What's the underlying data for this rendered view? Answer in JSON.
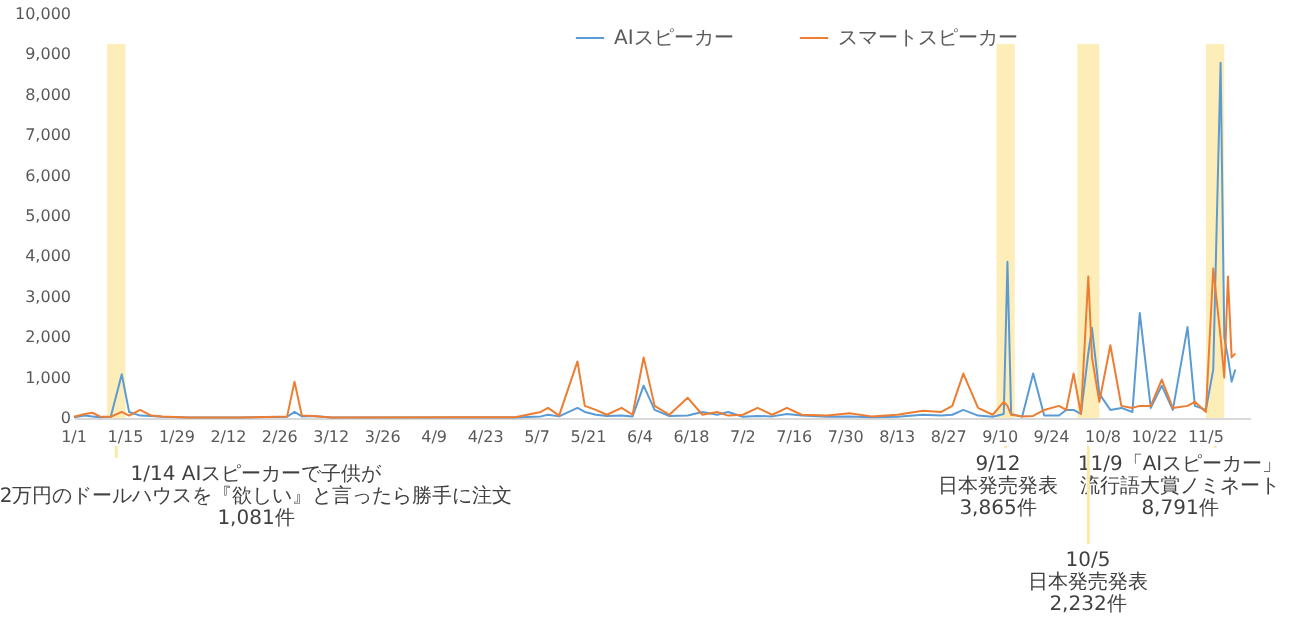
{
  "chart_data": {
    "type": "line",
    "x": [
      "--01-01",
      "--01-04",
      "--01-06",
      "--01-08",
      "--01-11",
      "--01-14",
      "--01-16",
      "--01-19",
      "--01-22",
      "--01-25",
      "--02-01",
      "--02-15",
      "--02-28",
      "--03-02",
      "--03-04",
      "--03-07",
      "--03-12",
      "--04-15",
      "--05-01",
      "--05-08",
      "--05-10",
      "--05-13",
      "--05-18",
      "--05-20",
      "--05-23",
      "--05-26",
      "--05-30",
      "--06-02",
      "--06-05",
      "--06-08",
      "--06-12",
      "--06-17",
      "--06-21",
      "--06-25",
      "--06-28",
      "--07-02",
      "--07-06",
      "--07-10",
      "--07-14",
      "--07-18",
      "--07-25",
      "--07-31",
      "--08-06",
      "--08-13",
      "--08-20",
      "--08-25",
      "--08-28",
      "--08-31",
      "--09-04",
      "--09-08",
      "--09-11",
      "--09-12",
      "--09-13",
      "--09-16",
      "--09-19",
      "--09-22",
      "--09-26",
      "--09-28",
      "--09-30",
      "--10-02",
      "--10-04",
      "--10-05",
      "--10-07",
      "--10-10",
      "--10-13",
      "--10-16",
      "--10-18",
      "--10-21",
      "--10-24",
      "--10-27",
      "--10-31",
      "--11-02",
      "--11-05",
      "--11-07",
      "--11-09",
      "--11-10",
      "--11-11",
      "--11-12",
      "--11-13"
    ],
    "series": [
      {
        "name": "AIスピーカー",
        "color": "#5b9bd5",
        "values": [
          20,
          60,
          40,
          20,
          30,
          1081,
          150,
          60,
          50,
          30,
          10,
          10,
          30,
          150,
          40,
          50,
          10,
          10,
          10,
          40,
          80,
          40,
          250,
          150,
          80,
          50,
          60,
          40,
          800,
          200,
          50,
          60,
          150,
          80,
          150,
          30,
          50,
          40,
          100,
          60,
          30,
          40,
          20,
          30,
          80,
          60,
          80,
          200,
          60,
          30,
          100,
          3865,
          100,
          30,
          1100,
          60,
          60,
          200,
          200,
          100,
          1600,
          2232,
          600,
          200,
          250,
          150,
          2600,
          250,
          800,
          200,
          2250,
          300,
          200,
          1200,
          8791,
          2000,
          1500,
          900,
          1200
        ]
      },
      {
        "name": "スマートスピーカー",
        "color": "#ed7d31",
        "values": [
          30,
          100,
          130,
          40,
          30,
          150,
          60,
          200,
          60,
          40,
          10,
          10,
          40,
          900,
          60,
          50,
          10,
          20,
          20,
          150,
          250,
          60,
          1400,
          300,
          200,
          80,
          250,
          80,
          1500,
          300,
          80,
          500,
          80,
          150,
          60,
          80,
          250,
          80,
          250,
          80,
          60,
          120,
          40,
          80,
          180,
          150,
          300,
          1100,
          250,
          80,
          400,
          300,
          80,
          40,
          50,
          200,
          300,
          200,
          1100,
          100,
          3500,
          1500,
          400,
          1800,
          300,
          250,
          300,
          300,
          950,
          250,
          300,
          400,
          150,
          3700,
          2000,
          1000,
          3500,
          1500,
          1600
        ]
      }
    ],
    "xlim": [
      "--01-01",
      "--11-17"
    ],
    "xticks": [
      {
        "value": "--01-01",
        "label": "1/1"
      },
      {
        "value": "--01-15",
        "label": "1/15"
      },
      {
        "value": "--01-29",
        "label": "1/29"
      },
      {
        "value": "--02-12",
        "label": "2/12"
      },
      {
        "value": "--02-26",
        "label": "2/26"
      },
      {
        "value": "--03-12",
        "label": "3/12"
      },
      {
        "value": "--03-26",
        "label": "3/26"
      },
      {
        "value": "--04-09",
        "label": "4/9"
      },
      {
        "value": "--04-23",
        "label": "4/23"
      },
      {
        "value": "--05-07",
        "label": "5/7"
      },
      {
        "value": "--05-21",
        "label": "5/21"
      },
      {
        "value": "--06-04",
        "label": "6/4"
      },
      {
        "value": "--06-18",
        "label": "6/18"
      },
      {
        "value": "--07-02",
        "label": "7/2"
      },
      {
        "value": "--07-16",
        "label": "7/16"
      },
      {
        "value": "--07-30",
        "label": "7/30"
      },
      {
        "value": "--08-13",
        "label": "8/13"
      },
      {
        "value": "--08-27",
        "label": "8/27"
      },
      {
        "value": "--09-10",
        "label": "9/10"
      },
      {
        "value": "--09-24",
        "label": "9/24"
      },
      {
        "value": "--10-08",
        "label": "10/8"
      },
      {
        "value": "--10-22",
        "label": "10/22"
      },
      {
        "value": "--11-05",
        "label": "11/5"
      }
    ],
    "ylim": [
      0,
      10000
    ],
    "yticks": [
      0,
      {
        "value": 1000,
        "label": "1,000"
      },
      {
        "value": 2000,
        "label": "2,000"
      },
      {
        "value": 3000,
        "label": "3,000"
      },
      {
        "value": 4000,
        "label": "4,000"
      },
      {
        "value": 5000,
        "label": "5,000"
      },
      {
        "value": 6000,
        "label": "6,000"
      },
      {
        "value": 7000,
        "label": "7,000"
      },
      {
        "value": 8000,
        "label": "8,000"
      },
      {
        "value": 9000,
        "label": "9,000"
      },
      {
        "value": 10000,
        "label": "10,000"
      }
    ],
    "bands": [
      {
        "axis": "x",
        "from": "--01-10",
        "to": "--01-15",
        "color": "#fce9a8"
      },
      {
        "axis": "x",
        "from": "--09-09",
        "to": "--09-14",
        "color": "#fce9a8"
      },
      {
        "axis": "x",
        "from": "--10-01",
        "to": "--10-07",
        "color": "#fce9a8"
      },
      {
        "axis": "x",
        "from": "--11-05",
        "to": "--11-10",
        "color": "#fce9a8"
      }
    ],
    "annotations": [
      "1/14  AIスピーカーで子供が",
      "2万円のドールハウスを『欲しい』と言ったら勝手に注文",
      "1,081件",
      "9/12",
      "日本発売発表",
      "3,865件",
      "10/5",
      "日本発売発表",
      "2,232件",
      "11/9「AIスピーカー」",
      "流行語大賞ノミネート",
      "8,791件"
    ],
    "legend": "top"
  }
}
